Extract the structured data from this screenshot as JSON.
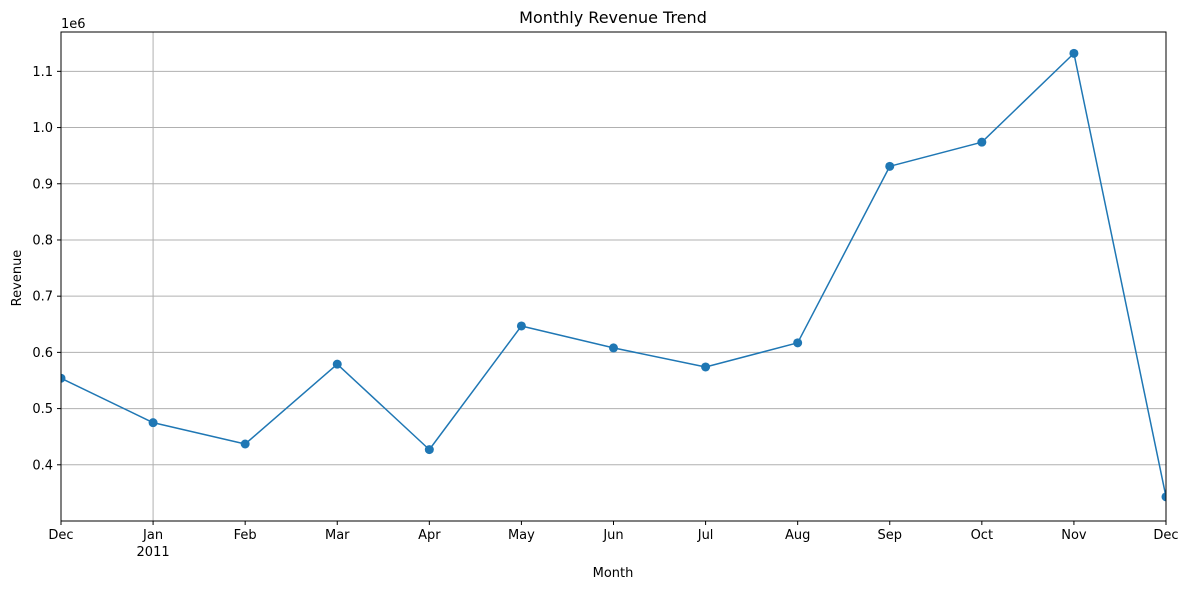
{
  "chart_data": {
    "type": "line",
    "title": "Monthly Revenue Trend",
    "xlabel": "Month",
    "ylabel": "Revenue",
    "y_offset_label": "1e6",
    "y_multiplier": 1000000,
    "x": [
      "2010-12",
      "2011-01",
      "2011-02",
      "2011-03",
      "2011-04",
      "2011-05",
      "2011-06",
      "2011-07",
      "2011-08",
      "2011-09",
      "2011-10",
      "2011-11",
      "2011-12"
    ],
    "x_tick_labels": [
      {
        "label": "Dec",
        "sub": ""
      },
      {
        "label": "Jan",
        "sub": "2011"
      },
      {
        "label": "Feb",
        "sub": ""
      },
      {
        "label": "Mar",
        "sub": ""
      },
      {
        "label": "Apr",
        "sub": ""
      },
      {
        "label": "May",
        "sub": ""
      },
      {
        "label": "Jun",
        "sub": ""
      },
      {
        "label": "Jul",
        "sub": ""
      },
      {
        "label": "Aug",
        "sub": ""
      },
      {
        "label": "Sep",
        "sub": ""
      },
      {
        "label": "Oct",
        "sub": ""
      },
      {
        "label": "Nov",
        "sub": ""
      },
      {
        "label": "Dec",
        "sub": ""
      }
    ],
    "series": [
      {
        "values": [
          554000,
          475000,
          437000,
          579000,
          427000,
          647000,
          608000,
          574000,
          617000,
          931000,
          974000,
          1132000,
          343000
        ],
        "color": "#1f77b4"
      }
    ],
    "yticks": [
      0.4,
      0.5,
      0.6,
      0.7,
      0.8,
      0.9,
      1.0,
      1.1
    ],
    "ytick_labels": [
      "0.4",
      "0.5",
      "0.6",
      "0.7",
      "0.8",
      "0.9",
      "1.0",
      "1.1"
    ],
    "ylim": [
      300000,
      1170000
    ],
    "grid": "y-axis lines plus x gridline at Jan 2011",
    "legend": "none"
  }
}
